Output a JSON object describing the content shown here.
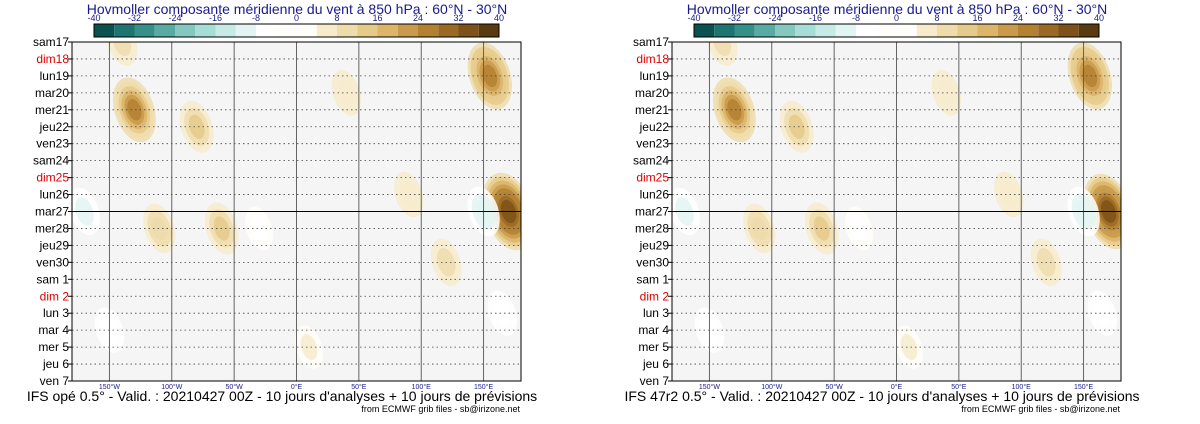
{
  "colors": {
    "weekend": "#dd0000",
    "weekday": "#000000",
    "palette": [
      "#0b5150",
      "#1e7470",
      "#35908a",
      "#58aaa2",
      "#84c8c0",
      "#a6ddd6",
      "#c6ebe6",
      "#e3f5f2",
      "#ffffff",
      "#fffefa",
      "#f7ebcc",
      "#efdcab",
      "#e6ca8a",
      "#dcb46a",
      "#c99a4b",
      "#b48032",
      "#9a6a24",
      "#7d5119",
      "#5a3a10"
    ]
  },
  "panels": [
    {
      "id": "left",
      "title": "Hovmoller composante méridienne du vent à 850 hPa : 60°N - 30°N",
      "footer": "IFS opé 0.5° - Valid. : 20210427 00Z - 10 jours d'analyses + 10 jours de prévisions",
      "source": "from ECMWF grib files - sb@irizone.net",
      "chart_data": {
        "type": "heatmap",
        "title": "Hovmoller composante méridienne du vent à 850 hPa : 60°N - 30°N",
        "variable": "meridional wind 850 hPa",
        "colorbar_ticks": [
          -40,
          -32,
          -24,
          -16,
          -8,
          0,
          8,
          16,
          24,
          32,
          40
        ],
        "colorbar_range": [
          -40,
          40
        ],
        "x_ticks": [
          "150°W",
          "100°W",
          "50°W",
          "0°E",
          "50°E",
          "100°E",
          "150°E"
        ],
        "x_values_deg": [
          -150,
          -100,
          -50,
          0,
          50,
          100,
          150
        ],
        "xlim_deg": [
          -180,
          180
        ],
        "y_ticks": [
          "sam17",
          "dim18",
          "lun19",
          "mar20",
          "mer21",
          "jeu22",
          "ven23",
          "sam24",
          "dim25",
          "lun26",
          "mar27",
          "mer28",
          "jeu29",
          "ven30",
          "sam 1",
          "dim 2",
          "lun 3",
          "mar 4",
          "mer 5",
          "jeu 6",
          "ven 7"
        ],
        "weekend_ticks": [
          "dim18",
          "dim25",
          "dim 2"
        ],
        "analysis_forecast_split": "mar27",
        "features": [
          {
            "lon": -130,
            "day": "mer21",
            "value": 28
          },
          {
            "lon": -140,
            "day": "sam17",
            "value": 12
          },
          {
            "lon": 155,
            "day": "lun19",
            "value": 30
          },
          {
            "lon": 170,
            "day": "mar27",
            "value": 40
          },
          {
            "lon": 150,
            "day": "mar27",
            "value": -14
          },
          {
            "lon": -170,
            "day": "mar27",
            "value": -12
          },
          {
            "lon": -60,
            "day": "mer28",
            "value": 16
          },
          {
            "lon": -110,
            "day": "mer28",
            "value": 14
          },
          {
            "lon": 40,
            "day": "mar20",
            "value": 10
          },
          {
            "lon": -80,
            "day": "jeu22",
            "value": 16
          },
          {
            "lon": -30,
            "day": "mer28",
            "value": -8
          },
          {
            "lon": 90,
            "day": "lun26",
            "value": 10
          },
          {
            "lon": 120,
            "day": "ven30",
            "value": 12
          },
          {
            "lon": -150,
            "day": "mar 4",
            "value": -10
          },
          {
            "lon": 165,
            "day": "lun 3",
            "value": -10
          },
          {
            "lon": 10,
            "day": "mer 5",
            "value": 8
          }
        ]
      }
    },
    {
      "id": "right",
      "title": "Hovmoller composante méridienne du vent à 850 hPa : 60°N - 30°N",
      "footer": "IFS 47r2 0.5° - Valid. : 20210427 00Z - 10 jours d'analyses + 10 jours de prévisions",
      "source": "from ECMWF grib files - sb@irizone.net",
      "chart_data": {
        "type": "heatmap",
        "title": "Hovmoller composante méridienne du vent à 850 hPa : 60°N - 30°N",
        "variable": "meridional wind 850 hPa",
        "colorbar_ticks": [
          -40,
          -32,
          -24,
          -16,
          -8,
          0,
          8,
          16,
          24,
          32,
          40
        ],
        "colorbar_range": [
          -40,
          40
        ],
        "x_ticks": [
          "150°W",
          "100°W",
          "50°W",
          "0°E",
          "50°E",
          "100°E",
          "150°E"
        ],
        "x_values_deg": [
          -150,
          -100,
          -50,
          0,
          50,
          100,
          150
        ],
        "xlim_deg": [
          -180,
          180
        ],
        "y_ticks": [
          "sam17",
          "dim18",
          "lun19",
          "mar20",
          "mer21",
          "jeu22",
          "ven23",
          "sam24",
          "dim25",
          "lun26",
          "mar27",
          "mer28",
          "jeu29",
          "ven30",
          "sam 1",
          "dim 2",
          "lun 3",
          "mar 4",
          "mer 5",
          "jeu 6",
          "ven 7"
        ],
        "weekend_ticks": [
          "dim18",
          "dim25",
          "dim 2"
        ],
        "analysis_forecast_split": "mar27",
        "features": [
          {
            "lon": -130,
            "day": "mer21",
            "value": 28
          },
          {
            "lon": -140,
            "day": "sam17",
            "value": 12
          },
          {
            "lon": 155,
            "day": "lun19",
            "value": 30
          },
          {
            "lon": 170,
            "day": "mar27",
            "value": 38
          },
          {
            "lon": 150,
            "day": "mar27",
            "value": -14
          },
          {
            "lon": -170,
            "day": "mar27",
            "value": -12
          },
          {
            "lon": -60,
            "day": "mer28",
            "value": 16
          },
          {
            "lon": -110,
            "day": "mer28",
            "value": 14
          },
          {
            "lon": 40,
            "day": "mar20",
            "value": 10
          },
          {
            "lon": -80,
            "day": "jeu22",
            "value": 16
          },
          {
            "lon": -30,
            "day": "mer28",
            "value": -8
          },
          {
            "lon": 90,
            "day": "lun26",
            "value": 10
          },
          {
            "lon": 120,
            "day": "ven30",
            "value": 12
          },
          {
            "lon": -150,
            "day": "mar 4",
            "value": -10
          },
          {
            "lon": 165,
            "day": "lun 3",
            "value": -10
          },
          {
            "lon": 10,
            "day": "mer 5",
            "value": 8
          }
        ]
      }
    }
  ]
}
